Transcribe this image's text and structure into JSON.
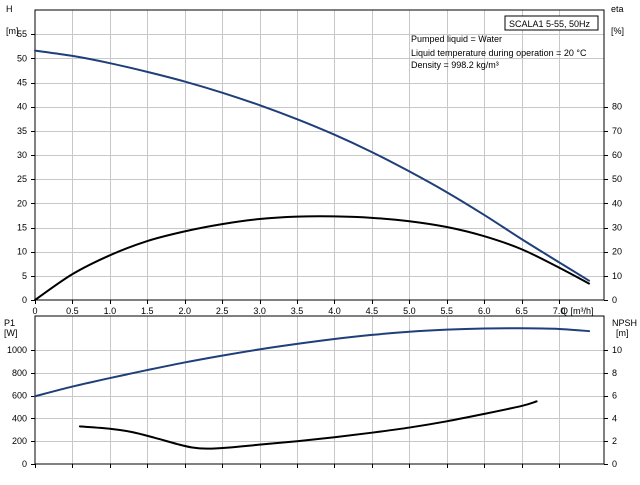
{
  "chart_data": [
    {
      "type": "line",
      "name": "pump-curves",
      "title_box": "SCALA1 5-55, 50Hz",
      "info_lines": [
        "Pumped liquid = Water",
        "Liquid temperature during operation = 20 °C",
        "Density = 998.2 kg/m³"
      ],
      "x_axis": {
        "label": "Q [m³/h]",
        "range": [
          0,
          7.6
        ],
        "ticks": [
          0,
          0.5,
          1,
          1.5,
          2,
          2.5,
          3,
          3.5,
          4,
          4.5,
          5,
          5.5,
          6,
          6.5,
          7
        ],
        "tick_labels": [
          "0",
          "0.5",
          "1.0",
          "1.5",
          "2.0",
          "2.5",
          "3.0",
          "3.5",
          "4.0",
          "4.5",
          "5.0",
          "5.5",
          "6.0",
          "6.5",
          "7.0"
        ]
      },
      "left_axis": {
        "label_top": "H",
        "label_unit": "[m]",
        "range": [
          0,
          60
        ],
        "ticks": [
          0,
          5,
          10,
          15,
          20,
          25,
          30,
          35,
          40,
          45,
          50,
          55
        ]
      },
      "right_axis": {
        "label_top": "eta",
        "label_unit": "[%]",
        "range": [
          0,
          120
        ],
        "ticks": [
          0,
          10,
          20,
          30,
          40,
          50,
          60,
          70,
          80
        ]
      },
      "grid": true,
      "series": [
        {
          "axis": "left",
          "color": "#1f3f7a",
          "x": [
            0,
            0.5,
            1,
            1.5,
            2,
            2.5,
            3,
            3.5,
            4,
            4.5,
            5,
            5.5,
            6,
            6.5,
            7,
            7.4
          ],
          "y": [
            51.6,
            50.5,
            49.0,
            47.2,
            45.2,
            42.9,
            40.3,
            37.4,
            34.2,
            30.6,
            26.6,
            22.3,
            17.6,
            12.6,
            7.8,
            4.0
          ]
        },
        {
          "axis": "right",
          "color": "#000000",
          "x": [
            0,
            0.5,
            1,
            1.5,
            2,
            2.5,
            3,
            3.5,
            4,
            4.5,
            5,
            5.5,
            6,
            6.5,
            7,
            7.4
          ],
          "y": [
            0,
            10.7,
            18.5,
            24.4,
            28.4,
            31.4,
            33.5,
            34.5,
            34.6,
            34.0,
            32.6,
            30.2,
            26.4,
            21.0,
            13.4,
            6.8
          ]
        }
      ]
    },
    {
      "type": "line",
      "name": "power-npsh",
      "x_axis": {
        "range": [
          0,
          7.6
        ]
      },
      "left_axis": {
        "label_top": "P1",
        "label_unit": "[W]",
        "range": [
          0,
          1300
        ],
        "ticks": [
          0,
          200,
          400,
          600,
          800,
          1000
        ]
      },
      "right_axis": {
        "label_top": "NPSH",
        "label_unit": "[m]",
        "range": [
          0,
          13
        ],
        "ticks": [
          0,
          2,
          4,
          6,
          8,
          10
        ]
      },
      "grid": true,
      "series": [
        {
          "axis": "left",
          "color": "#1f3f7a",
          "x": [
            0,
            0.5,
            1,
            1.5,
            2,
            2.5,
            3,
            3.5,
            4,
            4.5,
            5,
            5.5,
            6,
            6.5,
            7,
            7.4
          ],
          "y": [
            595,
            680,
            755,
            825,
            892,
            952,
            1007,
            1055,
            1098,
            1134,
            1162,
            1180,
            1190,
            1192,
            1186,
            1167
          ]
        },
        {
          "axis": "right",
          "color": "#000000",
          "x": [
            0.6,
            1.0,
            1.3,
            1.6,
            1.9,
            2.1,
            2.3,
            2.6,
            3.0,
            3.5,
            4.0,
            4.5,
            5.0,
            5.5,
            6.0,
            6.5,
            6.7
          ],
          "y": [
            3.3,
            3.1,
            2.8,
            2.3,
            1.75,
            1.45,
            1.35,
            1.45,
            1.7,
            2.0,
            2.35,
            2.75,
            3.2,
            3.75,
            4.4,
            5.1,
            5.5
          ]
        }
      ]
    }
  ]
}
